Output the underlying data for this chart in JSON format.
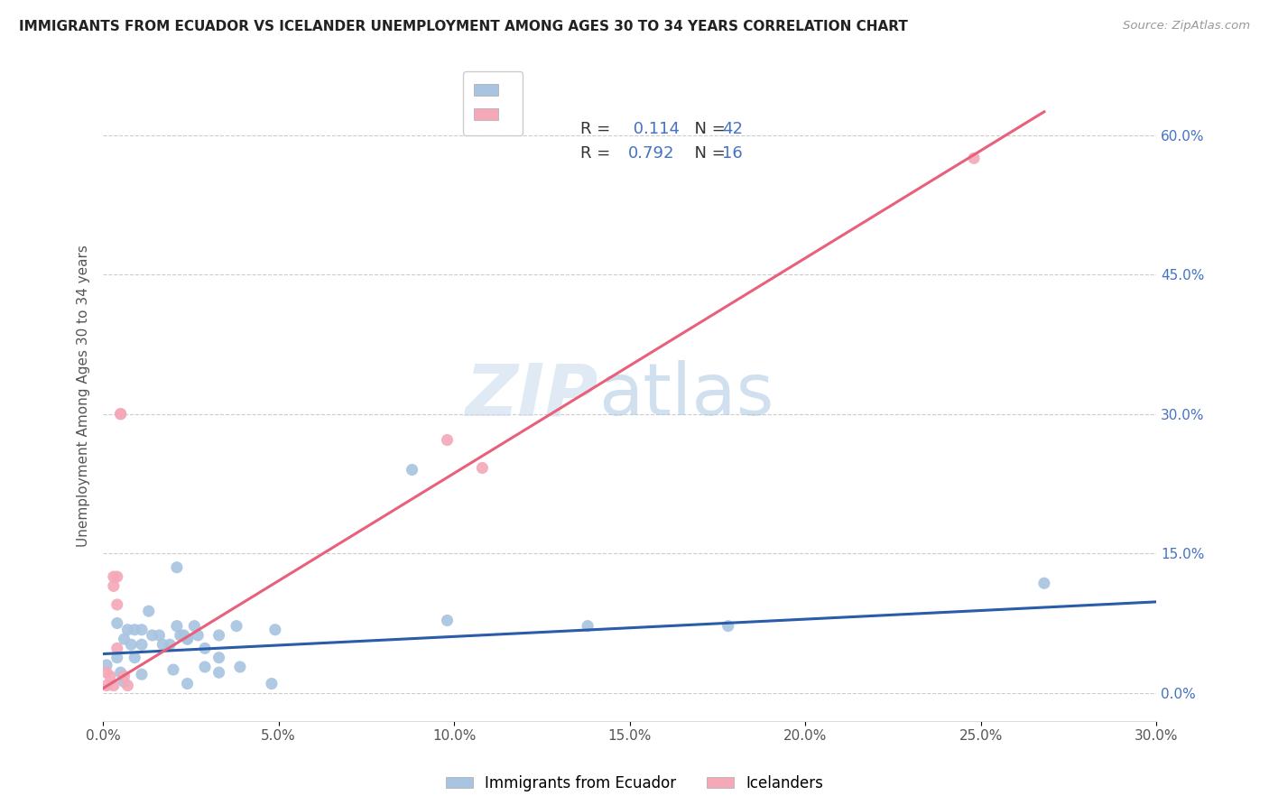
{
  "title": "IMMIGRANTS FROM ECUADOR VS ICELANDER UNEMPLOYMENT AMONG AGES 30 TO 34 YEARS CORRELATION CHART",
  "source": "Source: ZipAtlas.com",
  "ylabel": "Unemployment Among Ages 30 to 34 years",
  "xlim": [
    0.0,
    0.3
  ],
  "ylim": [
    -0.03,
    0.67
  ],
  "xticks": [
    0.0,
    0.05,
    0.1,
    0.15,
    0.2,
    0.25,
    0.3
  ],
  "ytick_vals": [
    0.0,
    0.15,
    0.3,
    0.45,
    0.6
  ],
  "ecuador_R": "0.114",
  "ecuador_N": "42",
  "iceland_R": "0.792",
  "iceland_N": "16",
  "ecuador_color": "#a8c4e0",
  "iceland_color": "#f4a8b8",
  "line_ecuador_color": "#2a5caa",
  "line_iceland_color": "#e8607a",
  "legend_text_color": "#333333",
  "legend_value_color": "#4472c4",
  "ecuador_points": [
    [
      0.001,
      0.03
    ],
    [
      0.004,
      0.075
    ],
    [
      0.004,
      0.038
    ],
    [
      0.005,
      0.022
    ],
    [
      0.006,
      0.058
    ],
    [
      0.006,
      0.012
    ],
    [
      0.007,
      0.068
    ],
    [
      0.008,
      0.052
    ],
    [
      0.009,
      0.068
    ],
    [
      0.009,
      0.038
    ],
    [
      0.011,
      0.068
    ],
    [
      0.011,
      0.052
    ],
    [
      0.011,
      0.02
    ],
    [
      0.013,
      0.088
    ],
    [
      0.014,
      0.062
    ],
    [
      0.016,
      0.062
    ],
    [
      0.017,
      0.052
    ],
    [
      0.019,
      0.052
    ],
    [
      0.02,
      0.025
    ],
    [
      0.021,
      0.135
    ],
    [
      0.021,
      0.072
    ],
    [
      0.022,
      0.062
    ],
    [
      0.023,
      0.062
    ],
    [
      0.024,
      0.01
    ],
    [
      0.024,
      0.058
    ],
    [
      0.024,
      0.058
    ],
    [
      0.026,
      0.072
    ],
    [
      0.027,
      0.062
    ],
    [
      0.029,
      0.028
    ],
    [
      0.029,
      0.048
    ],
    [
      0.033,
      0.062
    ],
    [
      0.033,
      0.038
    ],
    [
      0.033,
      0.022
    ],
    [
      0.038,
      0.072
    ],
    [
      0.039,
      0.028
    ],
    [
      0.048,
      0.01
    ],
    [
      0.049,
      0.068
    ],
    [
      0.088,
      0.24
    ],
    [
      0.098,
      0.078
    ],
    [
      0.138,
      0.072
    ],
    [
      0.178,
      0.072
    ],
    [
      0.268,
      0.118
    ]
  ],
  "iceland_points": [
    [
      0.001,
      0.022
    ],
    [
      0.001,
      0.008
    ],
    [
      0.002,
      0.018
    ],
    [
      0.003,
      0.125
    ],
    [
      0.003,
      0.115
    ],
    [
      0.003,
      0.008
    ],
    [
      0.004,
      0.125
    ],
    [
      0.004,
      0.095
    ],
    [
      0.004,
      0.048
    ],
    [
      0.005,
      0.3
    ],
    [
      0.005,
      0.3
    ],
    [
      0.006,
      0.018
    ],
    [
      0.007,
      0.008
    ],
    [
      0.098,
      0.272
    ],
    [
      0.108,
      0.242
    ],
    [
      0.248,
      0.575
    ]
  ],
  "ecuador_trendline_x": [
    0.0,
    0.3
  ],
  "ecuador_trendline_y": [
    0.042,
    0.098
  ],
  "iceland_trendline_x": [
    0.0,
    0.268
  ],
  "iceland_trendline_y": [
    0.005,
    0.625
  ]
}
